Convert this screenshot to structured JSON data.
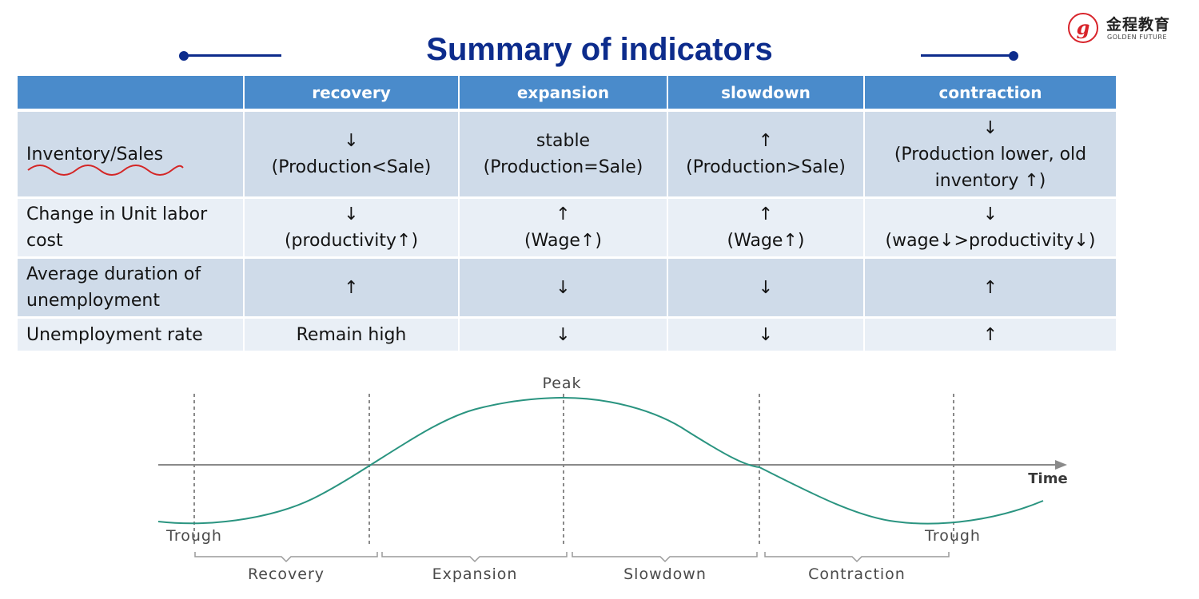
{
  "brand": {
    "cn": "金程教育",
    "en": "GOLDEN FUTURE",
    "seal": "g"
  },
  "title": "Summary of indicators",
  "table": {
    "headers": [
      "",
      "recovery",
      "expansion",
      "slowdown",
      "contraction"
    ],
    "rows": [
      {
        "label": "Inventory/Sales",
        "cells": [
          [
            "↓",
            "(Production<Sale)"
          ],
          [
            "stable",
            "(Production=Sale)"
          ],
          [
            "↑",
            "(Production>Sale)"
          ],
          [
            "↓",
            "(Production lower, old",
            "inventory ↑)"
          ]
        ]
      },
      {
        "label": "Change in Unit labor cost",
        "cells": [
          [
            "↓",
            "(productivity↑)"
          ],
          [
            "↑",
            "(Wage↑)"
          ],
          [
            "↑",
            "(Wage↑)"
          ],
          [
            "↓",
            "(wage↓>productivity↓)"
          ]
        ]
      },
      {
        "label": "Average duration of unemployment",
        "cells": [
          "↑",
          "↓",
          "↓",
          "↑"
        ]
      },
      {
        "label": "Unemployment rate",
        "cells": [
          "Remain high",
          "↓",
          "↓",
          "↑"
        ]
      }
    ]
  },
  "diagram": {
    "peak": "Peak",
    "trough_left": "Trough",
    "trough_right": "Trough",
    "axis": "Time",
    "phases": [
      "Recovery",
      "Expansion",
      "Slowdown",
      "Contraction"
    ],
    "curve_color": "#2a9480"
  }
}
